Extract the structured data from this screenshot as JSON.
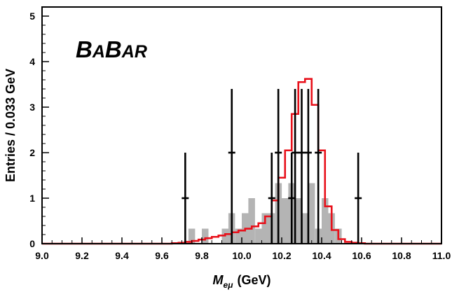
{
  "chart_data": {
    "type": "histogram",
    "logo": "BABAR",
    "xlabel": {
      "symbol": "M",
      "subscript": "eμ",
      "unit": "(GeV)"
    },
    "ylabel": "Entries / 0.033 GeV",
    "xlim": [
      9.0,
      11.0
    ],
    "ylim": [
      0,
      5.2
    ],
    "x_ticks": [
      "9.0",
      "9.2",
      "9.4",
      "9.6",
      "9.8",
      "10.0",
      "10.2",
      "10.4",
      "10.6",
      "10.8",
      "11.0"
    ],
    "y_ticks": [
      "0",
      "1",
      "2",
      "3",
      "4",
      "5"
    ],
    "bin_width": 0.0333,
    "grey_histogram": {
      "color": "#b4b4b4",
      "bins": [
        [
          9.733,
          0.33
        ],
        [
          9.767,
          0.0
        ],
        [
          9.8,
          0.33
        ],
        [
          9.833,
          0.0
        ],
        [
          9.867,
          0.0
        ],
        [
          9.9,
          0.33
        ],
        [
          9.933,
          0.67
        ],
        [
          9.967,
          0.33
        ],
        [
          10.0,
          0.67
        ],
        [
          10.033,
          1.0
        ],
        [
          10.067,
          0.33
        ],
        [
          10.1,
          0.67
        ],
        [
          10.133,
          0.67
        ],
        [
          10.167,
          1.33
        ],
        [
          10.2,
          1.0
        ],
        [
          10.233,
          1.33
        ],
        [
          10.267,
          1.0
        ],
        [
          10.3,
          0.67
        ],
        [
          10.333,
          1.33
        ],
        [
          10.367,
          0.33
        ],
        [
          10.4,
          1.0
        ],
        [
          10.433,
          0.67
        ],
        [
          10.467,
          0.33
        ]
      ]
    },
    "signal_curve": {
      "color": "#e8101a",
      "edges": [
        9.65,
        9.6833,
        9.7167,
        9.75,
        9.7833,
        9.8167,
        9.85,
        9.8833,
        9.9167,
        9.95,
        9.9833,
        10.0167,
        10.05,
        10.0833,
        10.1167,
        10.15,
        10.1833,
        10.2167,
        10.25,
        10.2833,
        10.3167,
        10.35,
        10.3833,
        10.4167,
        10.45,
        10.4833,
        10.5167,
        10.55,
        10.5833,
        10.6167,
        10.65
      ],
      "heights": [
        0.01,
        0.02,
        0.04,
        0.06,
        0.09,
        0.12,
        0.15,
        0.18,
        0.21,
        0.25,
        0.29,
        0.33,
        0.38,
        0.45,
        0.6,
        0.95,
        1.45,
        2.05,
        2.85,
        3.55,
        3.62,
        3.05,
        2.05,
        0.82,
        0.3,
        0.1,
        0.04,
        0.02,
        0.01,
        0.0
      ]
    },
    "data_points": {
      "color": "#000000",
      "points": [
        [
          9.717,
          1
        ],
        [
          9.95,
          2
        ],
        [
          10.15,
          1
        ],
        [
          10.183,
          2
        ],
        [
          10.25,
          1
        ],
        [
          10.267,
          2
        ],
        [
          10.3,
          2
        ],
        [
          10.333,
          2
        ],
        [
          10.383,
          2
        ],
        [
          10.583,
          1
        ]
      ],
      "error_high": {
        "0": 0,
        "1": 2.0,
        "2": 3.4
      }
    }
  }
}
